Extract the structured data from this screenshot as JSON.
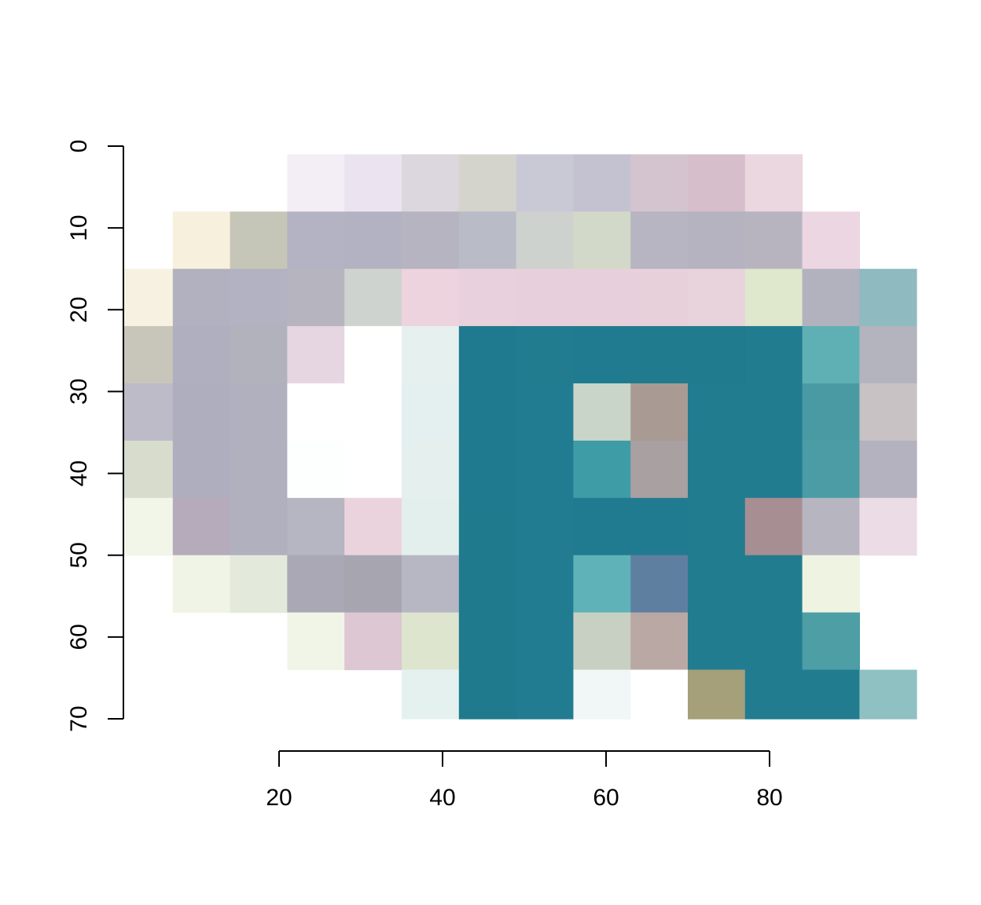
{
  "chart_data": {
    "type": "heatmap",
    "description_of_cells": "mosaic of image tiles forming a stylized R logo",
    "title": "",
    "xlabel": "",
    "ylabel": "",
    "x_ticks": [
      20,
      40,
      60,
      80
    ],
    "y_ticks": [
      0,
      10,
      20,
      30,
      40,
      50,
      60,
      70
    ],
    "xlim": [
      1,
      98
    ],
    "ylim": [
      0,
      70
    ],
    "y_reversed": true,
    "x_range_data": [
      0,
      98
    ],
    "cell_width": 7,
    "cell_height": 7,
    "grid": false,
    "legend": "none",
    "tiles": [
      {
        "x": 21,
        "y": 1,
        "color": "#f3eef6"
      },
      {
        "x": 28,
        "y": 1,
        "color": "#ebe4f0"
      },
      {
        "x": 35,
        "y": 1,
        "color": "#dcd7de"
      },
      {
        "x": 42,
        "y": 1,
        "color": "#d5d4cc"
      },
      {
        "x": 49,
        "y": 1,
        "color": "#c9c9d6"
      },
      {
        "x": 56,
        "y": 1,
        "color": "#c4c2d0"
      },
      {
        "x": 63,
        "y": 1,
        "color": "#d3c4d0"
      },
      {
        "x": 70,
        "y": 1,
        "color": "#d6bfca"
      },
      {
        "x": 77,
        "y": 1,
        "color": "#ead7e0"
      },
      {
        "x": 7,
        "y": 8,
        "color": "#f7f0dc"
      },
      {
        "x": 14,
        "y": 8,
        "color": "#c6c6b8"
      },
      {
        "x": 21,
        "y": 8,
        "color": "#b4b3c3"
      },
      {
        "x": 28,
        "y": 8,
        "color": "#b3b2c2"
      },
      {
        "x": 35,
        "y": 8,
        "color": "#b5b4c0"
      },
      {
        "x": 42,
        "y": 8,
        "color": "#b9bcc7"
      },
      {
        "x": 49,
        "y": 8,
        "color": "#cdd2cf"
      },
      {
        "x": 56,
        "y": 8,
        "color": "#d2d9c8"
      },
      {
        "x": 63,
        "y": 8,
        "color": "#b6b5c1"
      },
      {
        "x": 70,
        "y": 8,
        "color": "#b5b3c0"
      },
      {
        "x": 77,
        "y": 8,
        "color": "#b7b4c0"
      },
      {
        "x": 84,
        "y": 8,
        "color": "#ecd6e2"
      },
      {
        "x": 0,
        "y": 15,
        "color": "#f7f1e2"
      },
      {
        "x": 7,
        "y": 15,
        "color": "#b2b1c0"
      },
      {
        "x": 14,
        "y": 15,
        "color": "#b3b2c2"
      },
      {
        "x": 21,
        "y": 15,
        "color": "#b5b4bf"
      },
      {
        "x": 28,
        "y": 15,
        "color": "#cfd3cf"
      },
      {
        "x": 35,
        "y": 15,
        "color": "#ecd3dd"
      },
      {
        "x": 42,
        "y": 15,
        "color": "#e8d1dc"
      },
      {
        "x": 49,
        "y": 15,
        "color": "#e7d0db"
      },
      {
        "x": 56,
        "y": 15,
        "color": "#e7d0db"
      },
      {
        "x": 63,
        "y": 15,
        "color": "#e8d0db"
      },
      {
        "x": 70,
        "y": 15,
        "color": "#e8d2dc"
      },
      {
        "x": 77,
        "y": 15,
        "color": "#dfe7cd"
      },
      {
        "x": 84,
        "y": 15,
        "color": "#b1b2be"
      },
      {
        "x": 91,
        "y": 15,
        "color": "#8fbac0"
      },
      {
        "x": 0,
        "y": 22,
        "color": "#c8c5bb"
      },
      {
        "x": 7,
        "y": 22,
        "color": "#b0afbf"
      },
      {
        "x": 14,
        "y": 22,
        "color": "#b2b2bd"
      },
      {
        "x": 21,
        "y": 22,
        "color": "#e5d6e2"
      },
      {
        "x": 28,
        "y": 22,
        "color": "#ffffff"
      },
      {
        "x": 35,
        "y": 22,
        "color": "#e6f0ef"
      },
      {
        "x": 42,
        "y": 22,
        "color": "#1f7a8f"
      },
      {
        "x": 49,
        "y": 22,
        "color": "#217c90"
      },
      {
        "x": 56,
        "y": 22,
        "color": "#217b90"
      },
      {
        "x": 63,
        "y": 22,
        "color": "#207b8f"
      },
      {
        "x": 70,
        "y": 22,
        "color": "#207b8f"
      },
      {
        "x": 77,
        "y": 22,
        "color": "#227c90"
      },
      {
        "x": 84,
        "y": 22,
        "color": "#5fb0b4"
      },
      {
        "x": 91,
        "y": 22,
        "color": "#b3b4be"
      },
      {
        "x": 0,
        "y": 29,
        "color": "#bcbbc7"
      },
      {
        "x": 7,
        "y": 29,
        "color": "#afaebe"
      },
      {
        "x": 14,
        "y": 29,
        "color": "#b1b0be"
      },
      {
        "x": 21,
        "y": 29,
        "color": "#ffffff"
      },
      {
        "x": 28,
        "y": 29,
        "color": "#ffffff"
      },
      {
        "x": 35,
        "y": 29,
        "color": "#e4f0ef"
      },
      {
        "x": 42,
        "y": 29,
        "color": "#1f7a8f"
      },
      {
        "x": 49,
        "y": 29,
        "color": "#217c91"
      },
      {
        "x": 56,
        "y": 29,
        "color": "#c9d5c8"
      },
      {
        "x": 63,
        "y": 29,
        "color": "#a99a94"
      },
      {
        "x": 70,
        "y": 29,
        "color": "#217c90"
      },
      {
        "x": 77,
        "y": 29,
        "color": "#227c90"
      },
      {
        "x": 84,
        "y": 29,
        "color": "#4a9aa3"
      },
      {
        "x": 91,
        "y": 29,
        "color": "#c8c2c4"
      },
      {
        "x": 0,
        "y": 36,
        "color": "#d7dccd"
      },
      {
        "x": 7,
        "y": 36,
        "color": "#afaebe"
      },
      {
        "x": 14,
        "y": 36,
        "color": "#b1b0bf"
      },
      {
        "x": 21,
        "y": 36,
        "color": "#fdfefe"
      },
      {
        "x": 28,
        "y": 36,
        "color": "#ffffff"
      },
      {
        "x": 35,
        "y": 36,
        "color": "#e4efee"
      },
      {
        "x": 42,
        "y": 36,
        "color": "#1f7a8f"
      },
      {
        "x": 49,
        "y": 36,
        "color": "#217c91"
      },
      {
        "x": 56,
        "y": 36,
        "color": "#3e9ca6"
      },
      {
        "x": 63,
        "y": 36,
        "color": "#a9a0a2"
      },
      {
        "x": 70,
        "y": 36,
        "color": "#227c90"
      },
      {
        "x": 77,
        "y": 36,
        "color": "#227c90"
      },
      {
        "x": 84,
        "y": 36,
        "color": "#4b9ca5"
      },
      {
        "x": 91,
        "y": 36,
        "color": "#b4b2be"
      },
      {
        "x": 0,
        "y": 43,
        "color": "#f1f6e8"
      },
      {
        "x": 7,
        "y": 43,
        "color": "#b5abbb"
      },
      {
        "x": 14,
        "y": 43,
        "color": "#b1b0bf"
      },
      {
        "x": 21,
        "y": 43,
        "color": "#b6b5c2"
      },
      {
        "x": 28,
        "y": 43,
        "color": "#ebd3de"
      },
      {
        "x": 35,
        "y": 43,
        "color": "#e3efec"
      },
      {
        "x": 42,
        "y": 43,
        "color": "#1f7a8e"
      },
      {
        "x": 49,
        "y": 43,
        "color": "#217c91"
      },
      {
        "x": 56,
        "y": 43,
        "color": "#217b90"
      },
      {
        "x": 63,
        "y": 43,
        "color": "#217b90"
      },
      {
        "x": 70,
        "y": 43,
        "color": "#227c90"
      },
      {
        "x": 77,
        "y": 43,
        "color": "#a78e92"
      },
      {
        "x": 84,
        "y": 43,
        "color": "#b7b6c0"
      },
      {
        "x": 91,
        "y": 43,
        "color": "#ecdce6"
      },
      {
        "x": 7,
        "y": 50,
        "color": "#f0f4e6"
      },
      {
        "x": 14,
        "y": 50,
        "color": "#e4eadb"
      },
      {
        "x": 21,
        "y": 50,
        "color": "#a9a8b4"
      },
      {
        "x": 28,
        "y": 50,
        "color": "#a7a6b0"
      },
      {
        "x": 35,
        "y": 50,
        "color": "#b7b6c3"
      },
      {
        "x": 42,
        "y": 50,
        "color": "#1f7a8e"
      },
      {
        "x": 49,
        "y": 50,
        "color": "#217c91"
      },
      {
        "x": 56,
        "y": 50,
        "color": "#5fb3b8"
      },
      {
        "x": 63,
        "y": 50,
        "color": "#5f7fa0"
      },
      {
        "x": 70,
        "y": 50,
        "color": "#217c90"
      },
      {
        "x": 77,
        "y": 50,
        "color": "#227c90"
      },
      {
        "x": 84,
        "y": 50,
        "color": "#eef3e2"
      },
      {
        "x": 21,
        "y": 57,
        "color": "#f1f5e8"
      },
      {
        "x": 28,
        "y": 57,
        "color": "#dcc7d2"
      },
      {
        "x": 35,
        "y": 57,
        "color": "#dde5cf"
      },
      {
        "x": 42,
        "y": 57,
        "color": "#1f7a8e"
      },
      {
        "x": 49,
        "y": 57,
        "color": "#217c91"
      },
      {
        "x": 56,
        "y": 57,
        "color": "#c8d0c3"
      },
      {
        "x": 63,
        "y": 57,
        "color": "#b9a8a4"
      },
      {
        "x": 70,
        "y": 57,
        "color": "#217c90"
      },
      {
        "x": 77,
        "y": 57,
        "color": "#227c90"
      },
      {
        "x": 84,
        "y": 57,
        "color": "#4e9ea6"
      },
      {
        "x": 35,
        "y": 64,
        "color": "#e5f1ef"
      },
      {
        "x": 42,
        "y": 64,
        "color": "#1f7a8e"
      },
      {
        "x": 49,
        "y": 64,
        "color": "#217c91"
      },
      {
        "x": 56,
        "y": 64,
        "color": "#f1f6f6"
      },
      {
        "x": 63,
        "y": 64,
        "color": "#ffffff"
      },
      {
        "x": 70,
        "y": 64,
        "color": "#a5a07a"
      },
      {
        "x": 77,
        "y": 64,
        "color": "#227c90"
      },
      {
        "x": 84,
        "y": 64,
        "color": "#227c90"
      },
      {
        "x": 91,
        "y": 64,
        "color": "#8fc0c2"
      }
    ]
  }
}
